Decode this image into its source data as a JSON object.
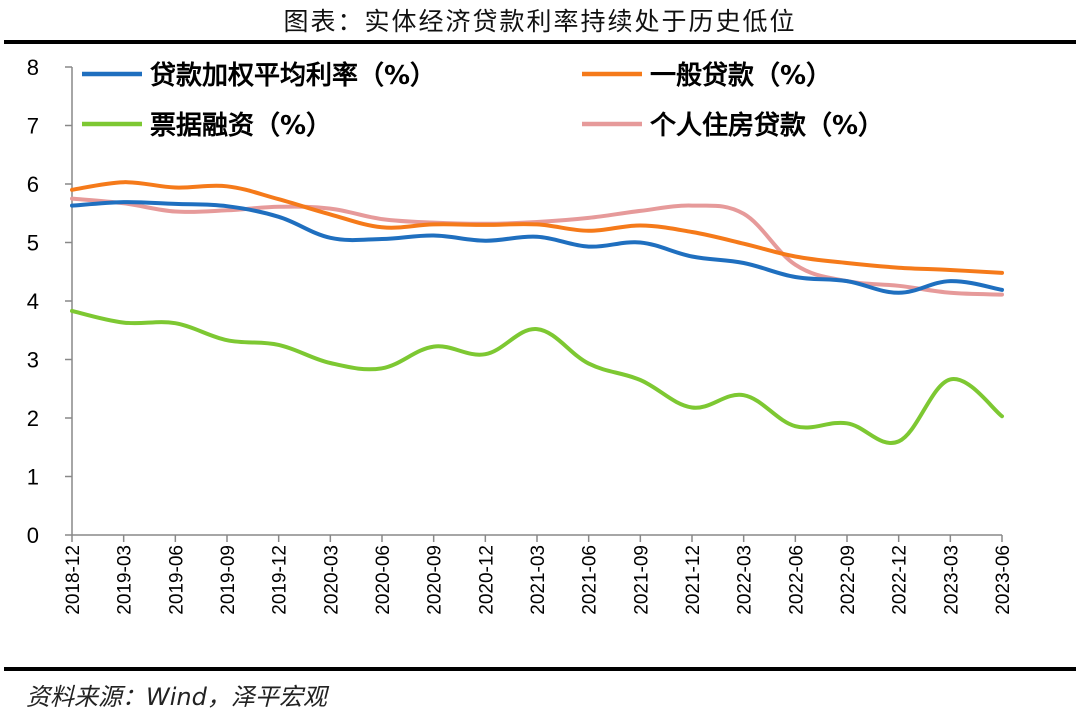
{
  "title": "图表：实体经济贷款利率持续处于历史低位",
  "source": "资料来源：Wind，泽平宏观",
  "chart_data": {
    "type": "line",
    "x": [
      "2018-12",
      "2019-03",
      "2019-06",
      "2019-09",
      "2019-12",
      "2020-03",
      "2020-06",
      "2020-09",
      "2020-12",
      "2021-03",
      "2021-06",
      "2021-09",
      "2021-12",
      "2022-03",
      "2022-06",
      "2022-09",
      "2022-12",
      "2023-03",
      "2023-06"
    ],
    "x_tick_labels": [
      "2018-12",
      "2019-03",
      "2019-06",
      "2019-09",
      "2019-12",
      "2020-03",
      "2020-06",
      "2020-09",
      "2020-12",
      "2021-03",
      "2021-06",
      "2021-09",
      "2021-12",
      "2022-03",
      "2022-06",
      "2022-09",
      "2022-12",
      "2023-03",
      "2023-06"
    ],
    "ylim": [
      0,
      8
    ],
    "y_ticks": [
      0,
      1,
      2,
      3,
      4,
      5,
      6,
      7,
      8
    ],
    "grid": false,
    "legend_position": "top",
    "series": [
      {
        "name": "贷款加权平均利率（%）",
        "color": "#1f6fbf",
        "values": [
          5.63,
          5.69,
          5.66,
          5.62,
          5.44,
          5.08,
          5.06,
          5.12,
          5.03,
          5.1,
          4.93,
          5.0,
          4.76,
          4.65,
          4.41,
          4.34,
          4.14,
          4.34,
          4.19
        ]
      },
      {
        "name": "一般贷款（%）",
        "color": "#f57a1a",
        "values": [
          5.9,
          6.03,
          5.94,
          5.96,
          5.74,
          5.48,
          5.26,
          5.31,
          5.3,
          5.31,
          5.2,
          5.29,
          5.18,
          4.98,
          4.76,
          4.65,
          4.57,
          4.53,
          4.48
        ]
      },
      {
        "name": "票据融资（%）",
        "color": "#7dc832",
        "values": [
          3.83,
          3.63,
          3.62,
          3.33,
          3.25,
          2.94,
          2.85,
          3.22,
          3.09,
          3.52,
          2.93,
          2.65,
          2.18,
          2.39,
          1.86,
          1.91,
          1.6,
          2.66,
          2.03
        ]
      },
      {
        "name": "个人住房贷款（%）",
        "color": "#e69a9a",
        "values": [
          5.75,
          5.67,
          5.53,
          5.55,
          5.61,
          5.58,
          5.4,
          5.34,
          5.32,
          5.35,
          5.42,
          5.54,
          5.63,
          5.49,
          4.62,
          4.34,
          4.26,
          4.14,
          4.11
        ]
      }
    ]
  }
}
